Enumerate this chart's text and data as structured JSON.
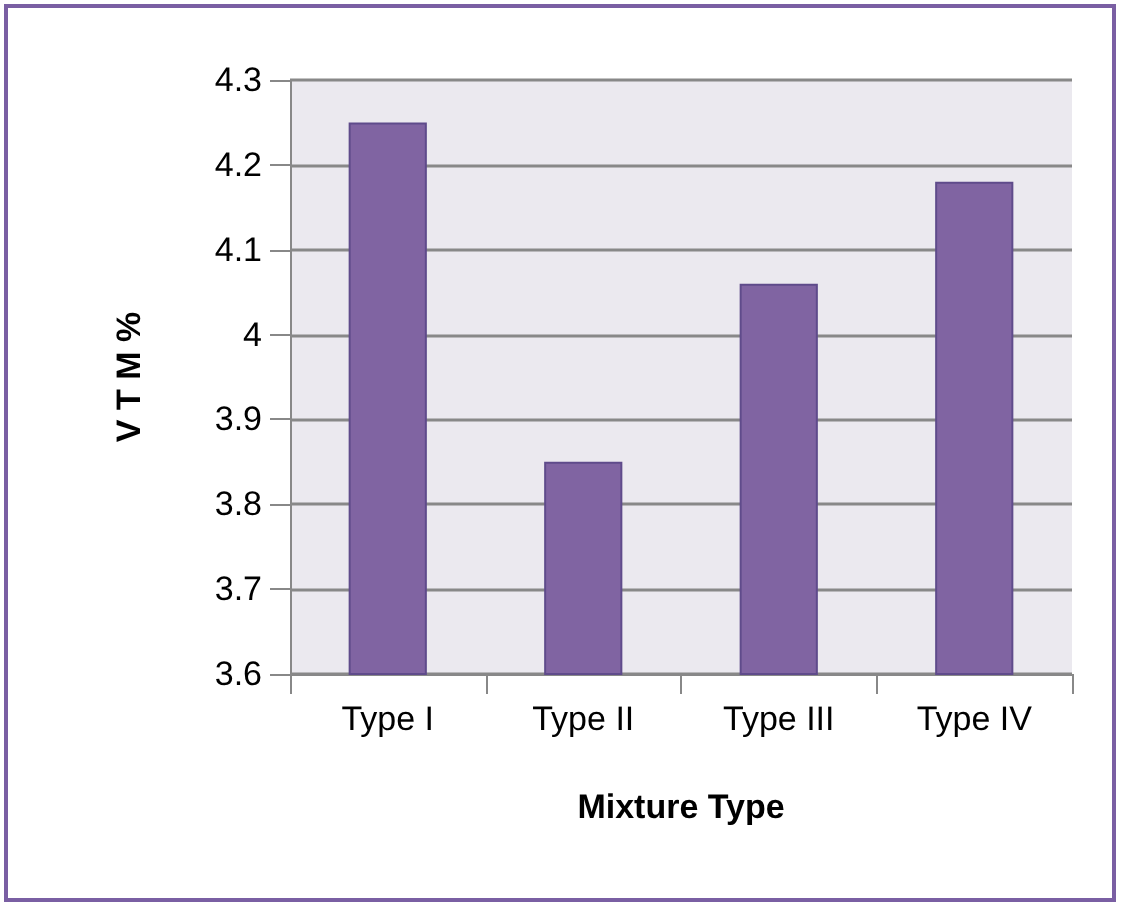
{
  "chart_data": {
    "type": "bar",
    "xlabel": "Mixture Type",
    "ylabel": "V T M %",
    "categories": [
      "Type I",
      "Type II",
      "Type III",
      "Type IV"
    ],
    "values": [
      4.25,
      3.85,
      4.06,
      4.18
    ],
    "color": "#8064a2",
    "ylim": [
      3.6,
      4.3
    ],
    "yticks": [
      3.6,
      3.7,
      3.8,
      3.9,
      4,
      4.1,
      4.2,
      4.3
    ],
    "grid": "y"
  }
}
